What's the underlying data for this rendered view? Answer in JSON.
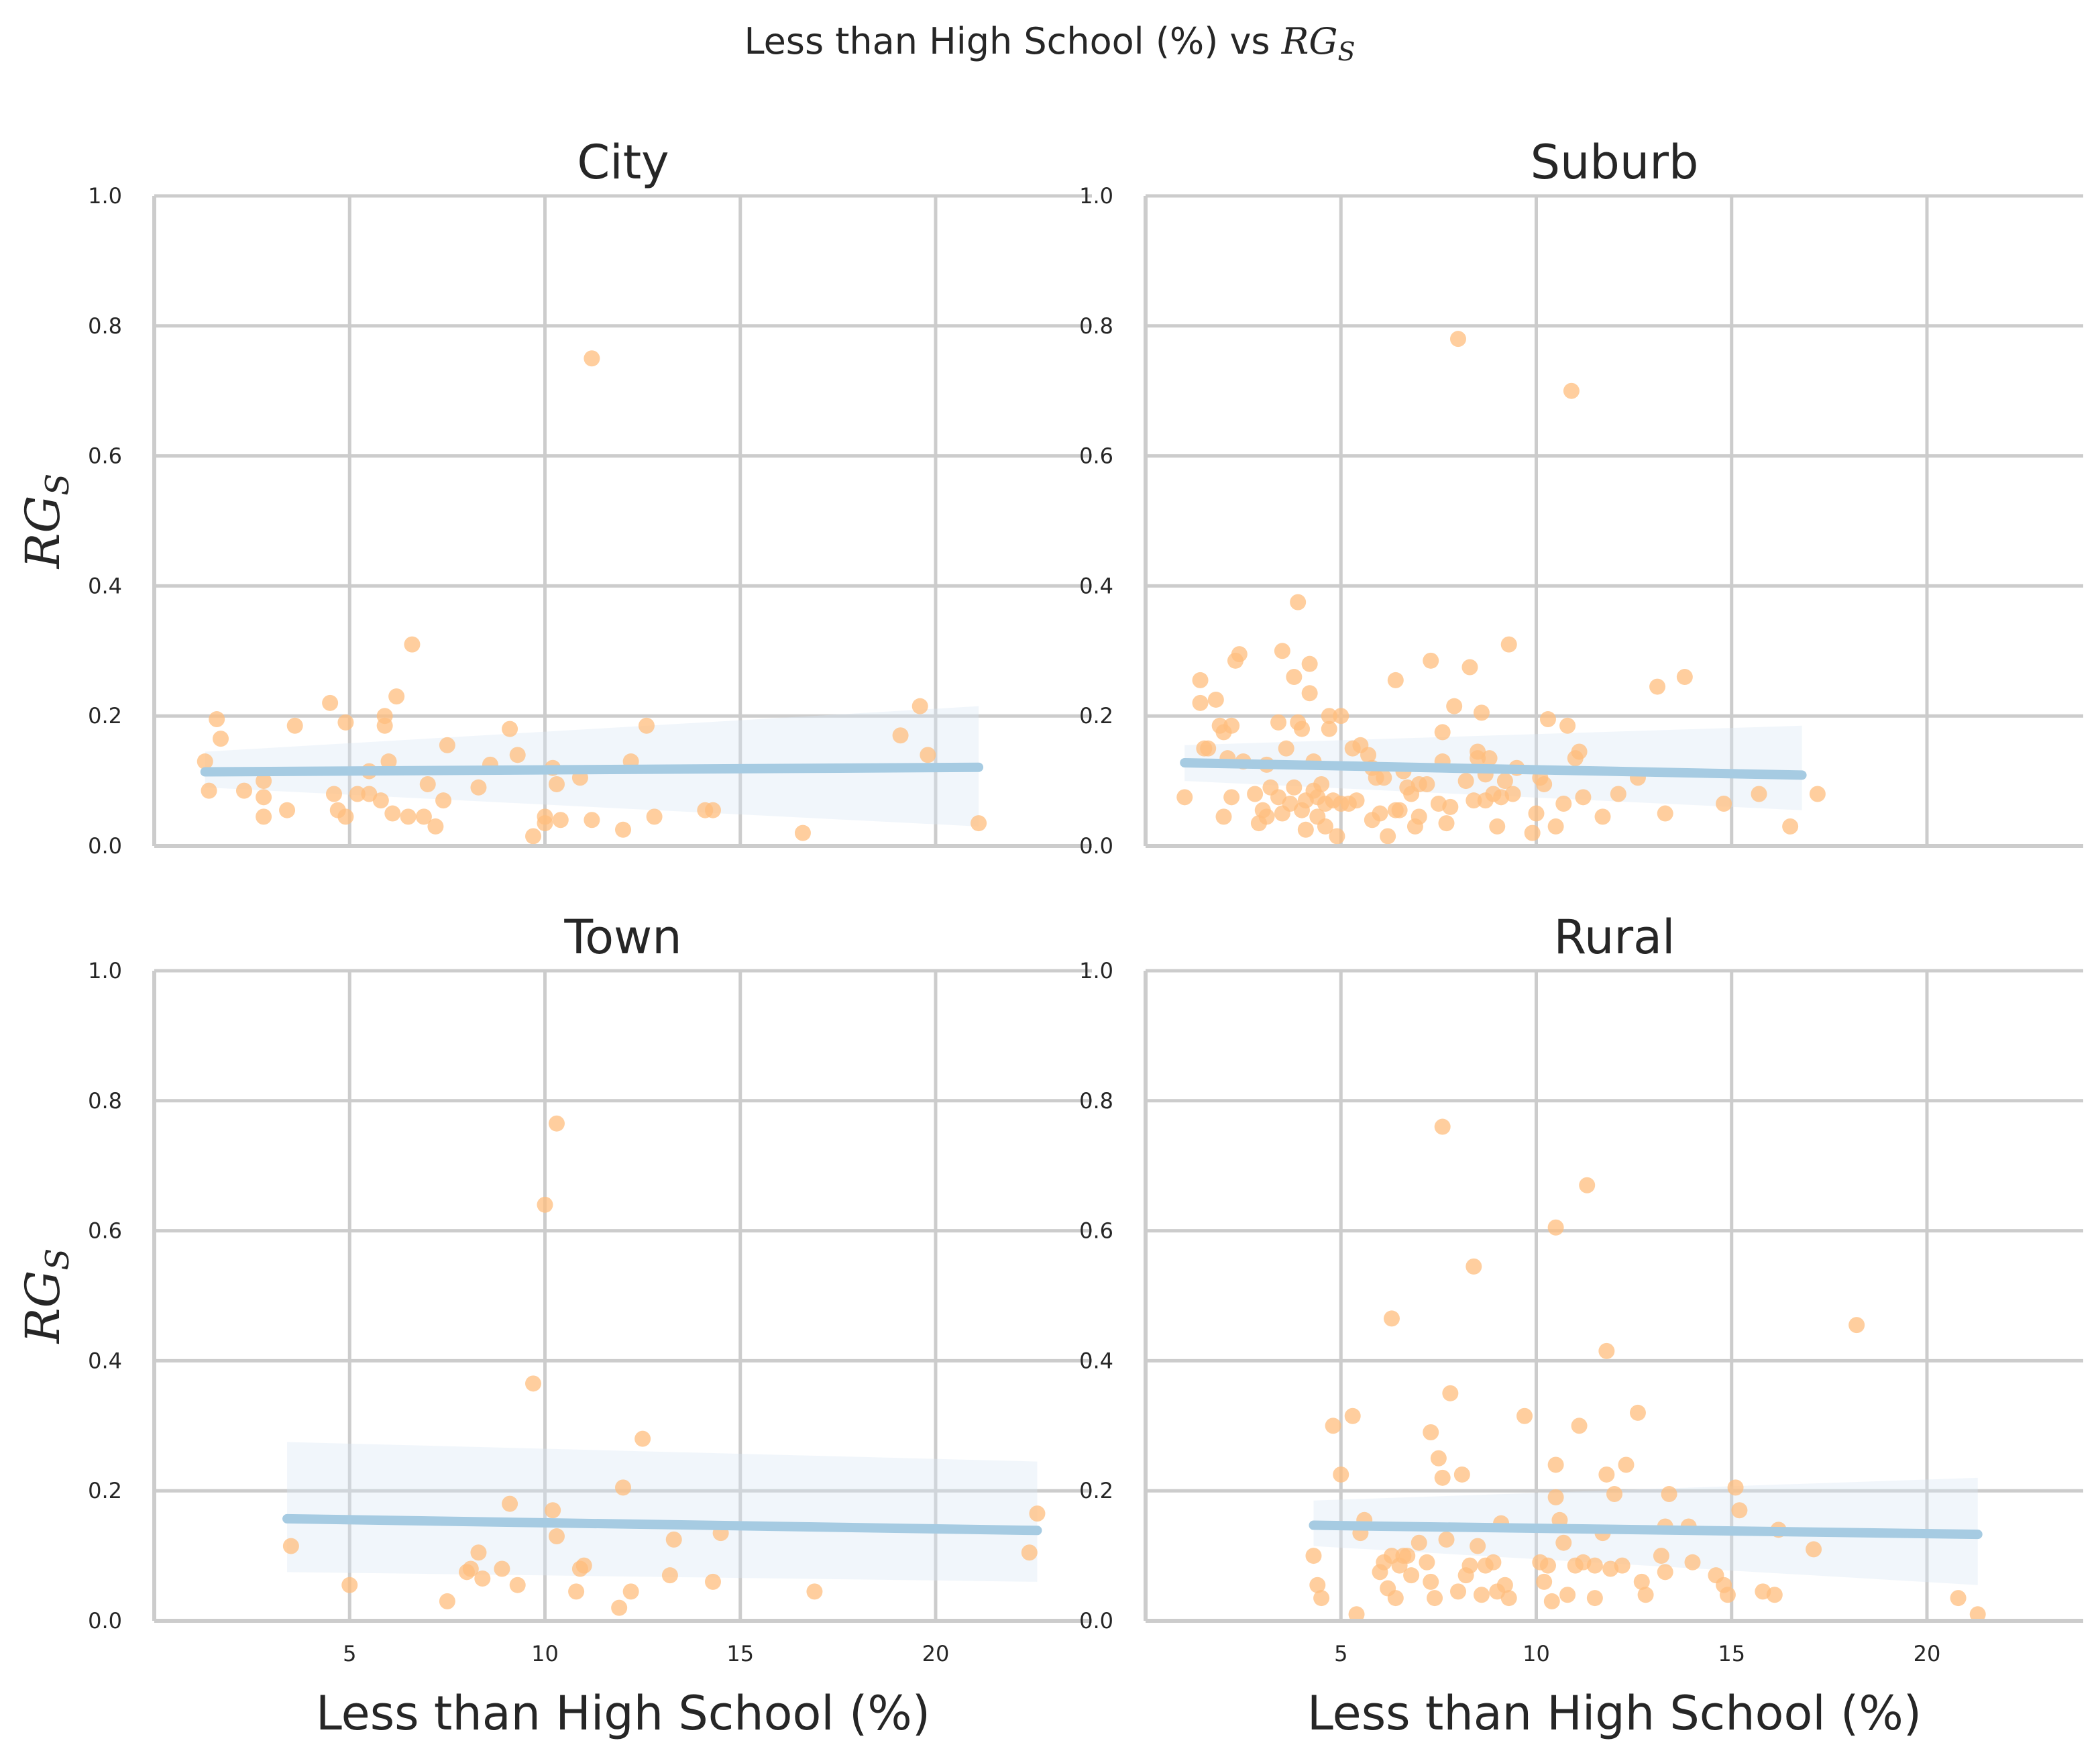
{
  "figure": {
    "title_prefix": "Less than High School (%) vs ",
    "title_math": "RG",
    "title_sub": "S"
  },
  "chart_data": [
    {
      "type": "scatter",
      "title": "City",
      "xlabel": "Less than High School (%)",
      "ylabel": "RG_S",
      "xlim": [
        0,
        24
      ],
      "ylim": [
        0,
        1
      ],
      "xticks": [
        5,
        10,
        15,
        20
      ],
      "yticks": [
        0.0,
        0.2,
        0.4,
        0.6,
        0.8,
        1.0
      ],
      "grid": true,
      "regression": {
        "x": [
          1.3,
          21.1
        ],
        "y": [
          0.114,
          0.121
        ],
        "ci_lower": [
          0.09,
          0.03
        ],
        "ci_upper": [
          0.145,
          0.215
        ]
      },
      "points": [
        [
          1.3,
          0.13
        ],
        [
          1.4,
          0.085
        ],
        [
          1.6,
          0.195
        ],
        [
          1.7,
          0.165
        ],
        [
          2.3,
          0.085
        ],
        [
          2.8,
          0.1
        ],
        [
          2.8,
          0.075
        ],
        [
          2.8,
          0.045
        ],
        [
          3.4,
          0.055
        ],
        [
          3.6,
          0.185
        ],
        [
          4.5,
          0.22
        ],
        [
          4.6,
          0.08
        ],
        [
          4.7,
          0.055
        ],
        [
          4.9,
          0.19
        ],
        [
          4.9,
          0.045
        ],
        [
          5.2,
          0.08
        ],
        [
          5.5,
          0.115
        ],
        [
          5.5,
          0.08
        ],
        [
          5.8,
          0.07
        ],
        [
          5.9,
          0.2
        ],
        [
          5.9,
          0.185
        ],
        [
          6.0,
          0.13
        ],
        [
          6.1,
          0.05
        ],
        [
          6.2,
          0.23
        ],
        [
          6.5,
          0.045
        ],
        [
          6.6,
          0.31
        ],
        [
          6.9,
          0.045
        ],
        [
          7.0,
          0.095
        ],
        [
          7.2,
          0.03
        ],
        [
          7.4,
          0.07
        ],
        [
          7.5,
          0.155
        ],
        [
          8.3,
          0.09
        ],
        [
          8.6,
          0.125
        ],
        [
          9.1,
          0.18
        ],
        [
          9.3,
          0.14
        ],
        [
          9.7,
          0.015
        ],
        [
          10.0,
          0.045
        ],
        [
          10.0,
          0.035
        ],
        [
          10.2,
          0.12
        ],
        [
          10.3,
          0.095
        ],
        [
          10.4,
          0.04
        ],
        [
          10.9,
          0.105
        ],
        [
          11.2,
          0.75
        ],
        [
          11.2,
          0.04
        ],
        [
          12.0,
          0.025
        ],
        [
          12.2,
          0.13
        ],
        [
          12.6,
          0.185
        ],
        [
          12.8,
          0.045
        ],
        [
          14.1,
          0.055
        ],
        [
          14.3,
          0.055
        ],
        [
          16.6,
          0.02
        ],
        [
          19.1,
          0.17
        ],
        [
          19.6,
          0.215
        ],
        [
          19.8,
          0.14
        ],
        [
          21.1,
          0.035
        ]
      ]
    },
    {
      "type": "scatter",
      "title": "Suburb",
      "xlabel": "Less than High School (%)",
      "ylabel": "RG_S",
      "xlim": [
        0,
        24
      ],
      "ylim": [
        0,
        1
      ],
      "xticks": [
        5,
        10,
        15,
        20
      ],
      "yticks": [
        0.0,
        0.2,
        0.4,
        0.6,
        0.8,
        1.0
      ],
      "grid": true,
      "regression": {
        "x": [
          1.0,
          16.8
        ],
        "y": [
          0.128,
          0.109
        ],
        "ci_lower": [
          0.1,
          0.055
        ],
        "ci_upper": [
          0.155,
          0.185
        ]
      },
      "points": [
        [
          1.0,
          0.075
        ],
        [
          1.4,
          0.255
        ],
        [
          1.4,
          0.22
        ],
        [
          1.5,
          0.15
        ],
        [
          1.6,
          0.15
        ],
        [
          1.8,
          0.225
        ],
        [
          1.9,
          0.185
        ],
        [
          2.0,
          0.175
        ],
        [
          2.0,
          0.045
        ],
        [
          2.1,
          0.135
        ],
        [
          2.2,
          0.075
        ],
        [
          2.2,
          0.185
        ],
        [
          2.3,
          0.285
        ],
        [
          2.4,
          0.295
        ],
        [
          2.5,
          0.13
        ],
        [
          2.8,
          0.08
        ],
        [
          2.9,
          0.035
        ],
        [
          3.0,
          0.055
        ],
        [
          3.1,
          0.045
        ],
        [
          3.1,
          0.125
        ],
        [
          3.2,
          0.09
        ],
        [
          3.4,
          0.075
        ],
        [
          3.4,
          0.19
        ],
        [
          3.5,
          0.3
        ],
        [
          3.5,
          0.05
        ],
        [
          3.6,
          0.15
        ],
        [
          3.7,
          0.065
        ],
        [
          3.8,
          0.09
        ],
        [
          3.8,
          0.26
        ],
        [
          3.9,
          0.375
        ],
        [
          3.9,
          0.19
        ],
        [
          4.0,
          0.055
        ],
        [
          4.0,
          0.18
        ],
        [
          4.1,
          0.07
        ],
        [
          4.1,
          0.025
        ],
        [
          4.2,
          0.28
        ],
        [
          4.2,
          0.235
        ],
        [
          4.3,
          0.085
        ],
        [
          4.3,
          0.13
        ],
        [
          4.4,
          0.045
        ],
        [
          4.4,
          0.075
        ],
        [
          4.5,
          0.095
        ],
        [
          4.6,
          0.065
        ],
        [
          4.6,
          0.03
        ],
        [
          4.7,
          0.18
        ],
        [
          4.7,
          0.2
        ],
        [
          4.8,
          0.07
        ],
        [
          4.9,
          0.015
        ],
        [
          5.0,
          0.2
        ],
        [
          5.0,
          0.065
        ],
        [
          5.2,
          0.065
        ],
        [
          5.3,
          0.15
        ],
        [
          5.4,
          0.07
        ],
        [
          5.5,
          0.155
        ],
        [
          5.7,
          0.14
        ],
        [
          5.8,
          0.12
        ],
        [
          5.8,
          0.04
        ],
        [
          5.9,
          0.105
        ],
        [
          6.0,
          0.05
        ],
        [
          6.1,
          0.105
        ],
        [
          6.2,
          0.015
        ],
        [
          6.4,
          0.055
        ],
        [
          6.4,
          0.255
        ],
        [
          6.5,
          0.055
        ],
        [
          6.6,
          0.115
        ],
        [
          6.7,
          0.09
        ],
        [
          6.8,
          0.08
        ],
        [
          6.9,
          0.03
        ],
        [
          7.0,
          0.095
        ],
        [
          7.0,
          0.045
        ],
        [
          7.2,
          0.095
        ],
        [
          7.3,
          0.285
        ],
        [
          7.5,
          0.065
        ],
        [
          7.6,
          0.175
        ],
        [
          7.6,
          0.13
        ],
        [
          7.7,
          0.035
        ],
        [
          7.8,
          0.06
        ],
        [
          7.9,
          0.215
        ],
        [
          8.0,
          0.78
        ],
        [
          8.2,
          0.1
        ],
        [
          8.3,
          0.275
        ],
        [
          8.4,
          0.07
        ],
        [
          8.5,
          0.145
        ],
        [
          8.5,
          0.135
        ],
        [
          8.6,
          0.205
        ],
        [
          8.7,
          0.11
        ],
        [
          8.7,
          0.07
        ],
        [
          8.8,
          0.135
        ],
        [
          8.9,
          0.08
        ],
        [
          9.0,
          0.03
        ],
        [
          9.1,
          0.075
        ],
        [
          9.2,
          0.1
        ],
        [
          9.3,
          0.31
        ],
        [
          9.4,
          0.08
        ],
        [
          9.5,
          0.12
        ],
        [
          9.9,
          0.02
        ],
        [
          10.0,
          0.05
        ],
        [
          10.1,
          0.105
        ],
        [
          10.2,
          0.095
        ],
        [
          10.3,
          0.195
        ],
        [
          10.5,
          0.03
        ],
        [
          10.7,
          0.065
        ],
        [
          10.8,
          0.185
        ],
        [
          10.9,
          0.7
        ],
        [
          11.0,
          0.135
        ],
        [
          11.1,
          0.145
        ],
        [
          11.2,
          0.075
        ],
        [
          11.7,
          0.045
        ],
        [
          12.1,
          0.08
        ],
        [
          12.6,
          0.105
        ],
        [
          13.1,
          0.245
        ],
        [
          13.3,
          0.05
        ],
        [
          13.8,
          0.26
        ],
        [
          14.8,
          0.065
        ],
        [
          15.7,
          0.08
        ],
        [
          16.5,
          0.03
        ],
        [
          17.2,
          0.08
        ]
      ]
    },
    {
      "type": "scatter",
      "title": "Town",
      "xlabel": "Less than High School (%)",
      "ylabel": "RG_S",
      "xlim": [
        0,
        24
      ],
      "ylim": [
        0,
        1
      ],
      "xticks": [
        5,
        10,
        15,
        20
      ],
      "yticks": [
        0.0,
        0.2,
        0.4,
        0.6,
        0.8,
        1.0
      ],
      "grid": true,
      "regression": {
        "x": [
          3.4,
          22.6
        ],
        "y": [
          0.157,
          0.139
        ],
        "ci_lower": [
          0.075,
          0.06
        ],
        "ci_upper": [
          0.275,
          0.245
        ]
      },
      "points": [
        [
          3.5,
          0.115
        ],
        [
          5.0,
          0.055
        ],
        [
          7.5,
          0.03
        ],
        [
          8.0,
          0.075
        ],
        [
          8.1,
          0.08
        ],
        [
          8.3,
          0.105
        ],
        [
          8.4,
          0.065
        ],
        [
          8.9,
          0.08
        ],
        [
          9.1,
          0.18
        ],
        [
          9.3,
          0.055
        ],
        [
          9.7,
          0.365
        ],
        [
          10.0,
          0.64
        ],
        [
          10.2,
          0.17
        ],
        [
          10.3,
          0.765
        ],
        [
          10.3,
          0.13
        ],
        [
          10.8,
          0.045
        ],
        [
          10.9,
          0.08
        ],
        [
          11.0,
          0.085
        ],
        [
          11.9,
          0.02
        ],
        [
          12.0,
          0.205
        ],
        [
          12.2,
          0.045
        ],
        [
          12.5,
          0.28
        ],
        [
          13.2,
          0.07
        ],
        [
          13.3,
          0.125
        ],
        [
          14.3,
          0.06
        ],
        [
          14.5,
          0.135
        ],
        [
          16.9,
          0.045
        ],
        [
          22.4,
          0.105
        ],
        [
          22.6,
          0.165
        ]
      ]
    },
    {
      "type": "scatter",
      "title": "Rural",
      "xlabel": "Less than High School (%)",
      "ylabel": "RG_S",
      "xlim": [
        0,
        24
      ],
      "ylim": [
        0,
        1
      ],
      "xticks": [
        5,
        10,
        15,
        20
      ],
      "yticks": [
        0.0,
        0.2,
        0.4,
        0.6,
        0.8,
        1.0
      ],
      "grid": true,
      "regression": {
        "x": [
          4.3,
          21.3
        ],
        "y": [
          0.147,
          0.133
        ],
        "ci_lower": [
          0.115,
          0.055
        ],
        "ci_upper": [
          0.185,
          0.22
        ]
      },
      "points": [
        [
          4.3,
          0.1
        ],
        [
          4.4,
          0.055
        ],
        [
          4.5,
          0.035
        ],
        [
          4.8,
          0.3
        ],
        [
          5.0,
          0.225
        ],
        [
          5.3,
          0.315
        ],
        [
          5.4,
          0.01
        ],
        [
          5.5,
          0.135
        ],
        [
          5.6,
          0.155
        ],
        [
          6.0,
          0.075
        ],
        [
          6.1,
          0.09
        ],
        [
          6.2,
          0.05
        ],
        [
          6.3,
          0.465
        ],
        [
          6.3,
          0.1
        ],
        [
          6.4,
          0.035
        ],
        [
          6.5,
          0.085
        ],
        [
          6.6,
          0.1
        ],
        [
          6.7,
          0.1
        ],
        [
          6.8,
          0.07
        ],
        [
          7.0,
          0.12
        ],
        [
          7.2,
          0.09
        ],
        [
          7.3,
          0.29
        ],
        [
          7.3,
          0.06
        ],
        [
          7.4,
          0.035
        ],
        [
          7.5,
          0.25
        ],
        [
          7.6,
          0.76
        ],
        [
          7.6,
          0.22
        ],
        [
          7.7,
          0.125
        ],
        [
          7.8,
          0.35
        ],
        [
          8.0,
          0.045
        ],
        [
          8.1,
          0.225
        ],
        [
          8.2,
          0.07
        ],
        [
          8.3,
          0.085
        ],
        [
          8.4,
          0.545
        ],
        [
          8.5,
          0.115
        ],
        [
          8.6,
          0.04
        ],
        [
          8.7,
          0.085
        ],
        [
          8.9,
          0.09
        ],
        [
          9.0,
          0.045
        ],
        [
          9.1,
          0.15
        ],
        [
          9.2,
          0.055
        ],
        [
          9.3,
          0.035
        ],
        [
          9.7,
          0.315
        ],
        [
          10.1,
          0.09
        ],
        [
          10.2,
          0.06
        ],
        [
          10.3,
          0.085
        ],
        [
          10.4,
          0.03
        ],
        [
          10.5,
          0.605
        ],
        [
          10.5,
          0.24
        ],
        [
          10.5,
          0.19
        ],
        [
          10.6,
          0.155
        ],
        [
          10.7,
          0.12
        ],
        [
          10.8,
          0.04
        ],
        [
          11.0,
          0.085
        ],
        [
          11.1,
          0.3
        ],
        [
          11.2,
          0.09
        ],
        [
          11.3,
          0.67
        ],
        [
          11.5,
          0.035
        ],
        [
          11.5,
          0.085
        ],
        [
          11.7,
          0.135
        ],
        [
          11.8,
          0.415
        ],
        [
          11.8,
          0.225
        ],
        [
          11.9,
          0.08
        ],
        [
          12.0,
          0.195
        ],
        [
          12.2,
          0.085
        ],
        [
          12.3,
          0.24
        ],
        [
          12.6,
          0.32
        ],
        [
          12.7,
          0.06
        ],
        [
          12.8,
          0.04
        ],
        [
          13.2,
          0.1
        ],
        [
          13.3,
          0.145
        ],
        [
          13.3,
          0.075
        ],
        [
          13.4,
          0.195
        ],
        [
          13.9,
          0.145
        ],
        [
          14.0,
          0.09
        ],
        [
          14.6,
          0.07
        ],
        [
          14.8,
          0.055
        ],
        [
          14.9,
          0.04
        ],
        [
          15.1,
          0.205
        ],
        [
          15.2,
          0.17
        ],
        [
          15.8,
          0.045
        ],
        [
          16.1,
          0.04
        ],
        [
          16.2,
          0.14
        ],
        [
          17.1,
          0.11
        ],
        [
          18.2,
          0.455
        ],
        [
          20.8,
          0.035
        ],
        [
          21.3,
          0.01
        ]
      ]
    }
  ]
}
